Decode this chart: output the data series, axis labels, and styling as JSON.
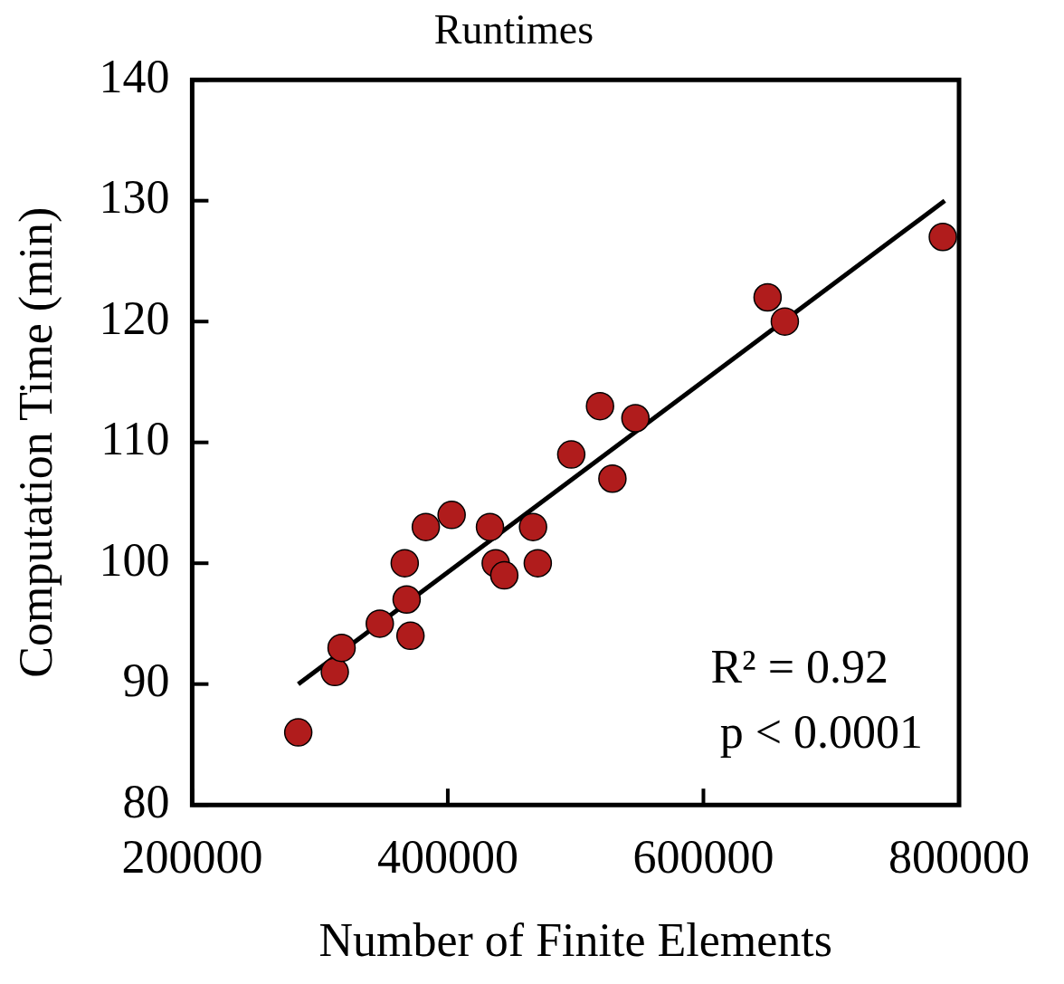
{
  "chart_data": {
    "type": "scatter",
    "title": "Runtimes",
    "xlabel": "Number of Finite Elements",
    "ylabel": "Computation Time (min)",
    "xlim": [
      200000,
      800000
    ],
    "xticks": [
      200000,
      400000,
      600000,
      800000
    ],
    "ylim": [
      80,
      140
    ],
    "yticks": [
      80,
      90,
      100,
      110,
      120,
      130,
      140
    ],
    "grid": false,
    "legend": false,
    "marker": "circle",
    "annotations": [
      "R² = 0.92",
      "p < 0.0001"
    ],
    "series": [
      {
        "color": "#b01c1c",
        "x": [
          283000,
          311600,
          316900,
          346800,
          366300,
          367800,
          370800,
          382800,
          403000,
          433000,
          437500,
          444200,
          466700,
          470400,
          496600,
          519100,
          528800,
          546800,
          650200,
          663700,
          787300
        ],
        "values": [
          86,
          91,
          93,
          95,
          100,
          97,
          94,
          103,
          104,
          103,
          100,
          99,
          103,
          100,
          109,
          113,
          107,
          112,
          122,
          120,
          127
        ]
      },
      {
        "type": "line",
        "color": "#000000",
        "marker": "none",
        "line_style": "solid",
        "x": [
          283000,
          788800
        ],
        "values": [
          90,
          130
        ]
      }
    ]
  }
}
